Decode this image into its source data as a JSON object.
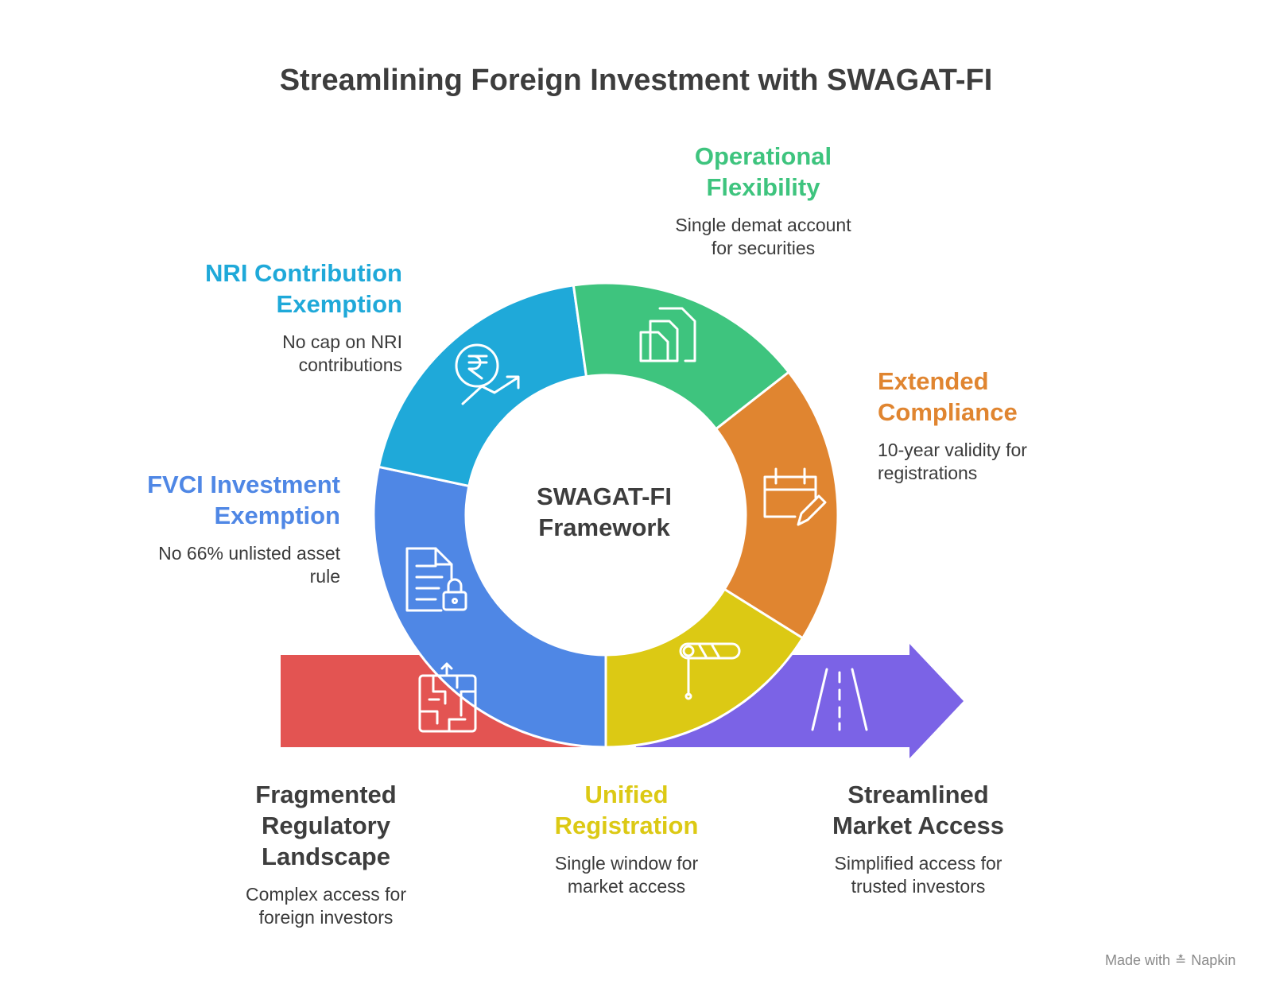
{
  "title": "Streamlining Foreign Investment with SWAGAT-FI",
  "center": {
    "line1": "SWAGAT-FI",
    "line2": "Framework"
  },
  "segments": [
    {
      "title_lines": [
        "FVCI Investment",
        "Exemption"
      ],
      "desc_lines": [
        "No 66% unlisted asset",
        "rule"
      ],
      "color": "#4f87e5",
      "icon": "document-lock-icon"
    },
    {
      "title_lines": [
        "NRI Contribution",
        "Exemption"
      ],
      "desc_lines": [
        "No cap on NRI",
        "contributions"
      ],
      "color": "#1fa9d9",
      "icon": "rupee-growth-icon"
    },
    {
      "title_lines": [
        "Operational",
        "Flexibility"
      ],
      "desc_lines": [
        "Single demat account",
        "for securities"
      ],
      "color": "#3ec47e",
      "icon": "stacked-files-icon"
    },
    {
      "title_lines": [
        "Extended",
        "Compliance"
      ],
      "desc_lines": [
        "10-year validity for",
        "registrations"
      ],
      "color": "#e08530",
      "icon": "calendar-edit-icon"
    },
    {
      "title_lines": [
        "Unified",
        "Registration"
      ],
      "desc_lines": [
        "Single window for",
        "market access"
      ],
      "color": "#dcc914",
      "icon": "barrier-gate-icon"
    }
  ],
  "start": {
    "title_lines": [
      "Fragmented",
      "Regulatory",
      "Landscape"
    ],
    "desc_lines": [
      "Complex access for",
      "foreign investors"
    ],
    "color": "#e35452",
    "icon": "maze-icon"
  },
  "end": {
    "title_lines": [
      "Streamlined",
      "Market Access"
    ],
    "desc_lines": [
      "Simplified access for",
      "trusted investors"
    ],
    "color": "#7b63e6",
    "icon": "road-icon"
  },
  "footer": {
    "text": "Made with",
    "brand": "Napkin"
  }
}
